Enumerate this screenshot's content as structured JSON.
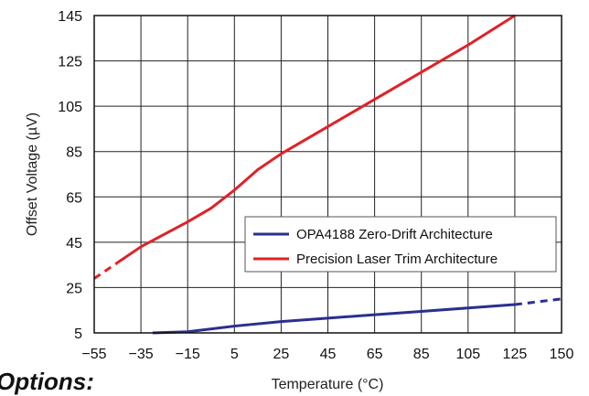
{
  "chart_data": {
    "type": "line",
    "xlabel": "Temperature (°C)",
    "ylabel": "Offset Voltage (µV)",
    "xlim": [
      -55,
      150
    ],
    "ylim": [
      5,
      145
    ],
    "x_ticks": [
      -55,
      -35,
      -15,
      5,
      25,
      45,
      65,
      85,
      105,
      125,
      150
    ],
    "y_ticks": [
      5,
      25,
      45,
      65,
      85,
      105,
      125,
      145
    ],
    "grid": true,
    "legend_position": "right, lower-middle",
    "series": [
      {
        "name": "OPA4188 Zero-Drift Architecture",
        "color": "#2b2f8f",
        "solid": {
          "x": [
            -30,
            -15,
            5,
            25,
            45,
            65,
            85,
            105,
            125
          ],
          "y": [
            5,
            5.5,
            8,
            10,
            11.5,
            13,
            14.5,
            16,
            17.5
          ]
        },
        "dashed": {
          "x": [
            125,
            150
          ],
          "y": [
            17.5,
            20
          ]
        }
      },
      {
        "name": "Precision Laser Trim Architecture",
        "color": "#e02128",
        "solid": {
          "x": [
            -45,
            -35,
            -15,
            -5,
            5,
            15,
            25,
            45,
            65,
            85,
            105,
            125
          ],
          "y": [
            36,
            43,
            54,
            60,
            68,
            77,
            84,
            96,
            108,
            120,
            132,
            145
          ]
        },
        "dashed": {
          "x": [
            -55,
            -45
          ],
          "y": [
            29,
            36
          ]
        }
      }
    ]
  },
  "overlay_text": "Options:"
}
